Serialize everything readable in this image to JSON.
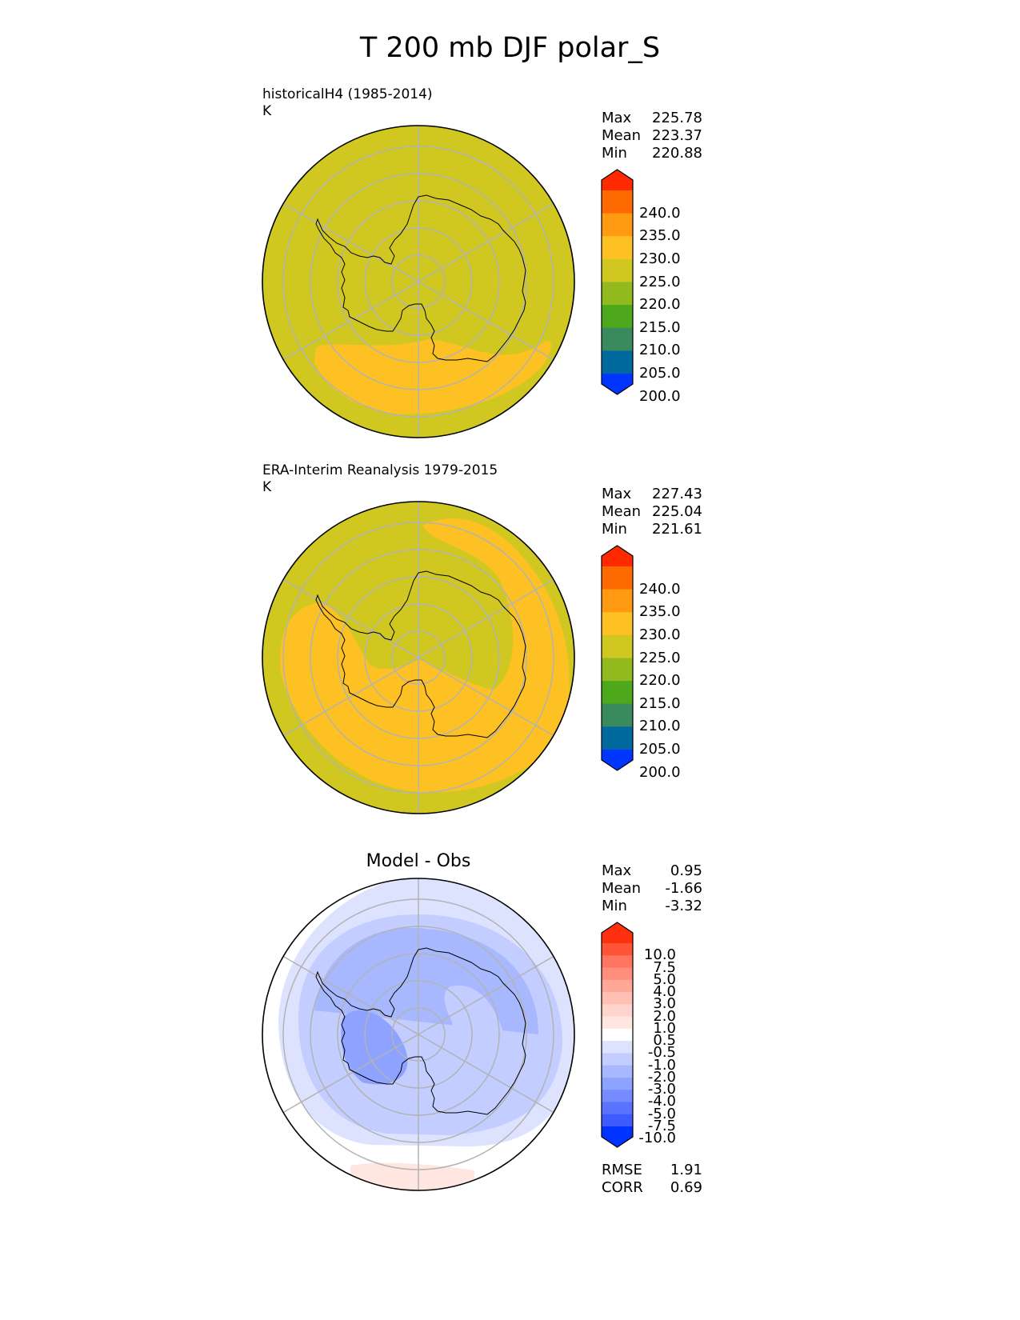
{
  "title": "T 200 mb DJF polar_S",
  "panels": [
    {
      "label_line1": "historicalH4 (1985-2014)",
      "label_line2": "K",
      "stats": [
        {
          "label": "Max",
          "value": "225.78"
        },
        {
          "label": "Mean",
          "value": "223.37"
        },
        {
          "label": "Min",
          "value": "220.88"
        }
      ]
    },
    {
      "label_line1": "ERA-Interim Reanalysis 1979-2015",
      "label_line2": "K",
      "stats": [
        {
          "label": "Max",
          "value": "227.43"
        },
        {
          "label": "Mean",
          "value": "225.04"
        },
        {
          "label": "Min",
          "value": "221.61"
        }
      ]
    },
    {
      "title": "Model - Obs",
      "stats": [
        {
          "label": "Max",
          "value": "0.95"
        },
        {
          "label": "Mean",
          "value": "-1.66"
        },
        {
          "label": "Min",
          "value": "-3.32"
        }
      ],
      "metrics": [
        {
          "label": "RMSE",
          "value": "1.91"
        },
        {
          "label": "CORR",
          "value": "0.69"
        }
      ]
    }
  ],
  "colorbar_abs": {
    "ticks": [
      "240.0",
      "235.0",
      "230.0",
      "225.0",
      "220.0",
      "215.0",
      "210.0",
      "205.0",
      "200.0"
    ],
    "colors_top_to_bottom": [
      "#ff2a00",
      "#ff6a00",
      "#ff9a12",
      "#fdc123",
      "#d0c821",
      "#92b91e",
      "#4ea81c",
      "#398a5c",
      "#00699e",
      "#0035ff"
    ]
  },
  "colorbar_diff": {
    "ticks": [
      "10.0",
      "7.5",
      "5.0",
      "4.0",
      "3.0",
      "2.0",
      "1.0",
      "0.5",
      "-0.5",
      "-1.0",
      "-2.0",
      "-3.0",
      "-4.0",
      "-5.0",
      "-7.5",
      "-10.0"
    ],
    "colors_top_to_bottom": [
      "#ff3010",
      "#ff5536",
      "#ff7560",
      "#ff8f7c",
      "#ffa898",
      "#ffbfb3",
      "#ffd4cc",
      "#ffe6e1",
      "#ffffff",
      "#dde3ff",
      "#c3cdff",
      "#a8b8ff",
      "#8ea2ff",
      "#758bff",
      "#5a73ff",
      "#3e5bff",
      "#0033ff"
    ]
  }
}
